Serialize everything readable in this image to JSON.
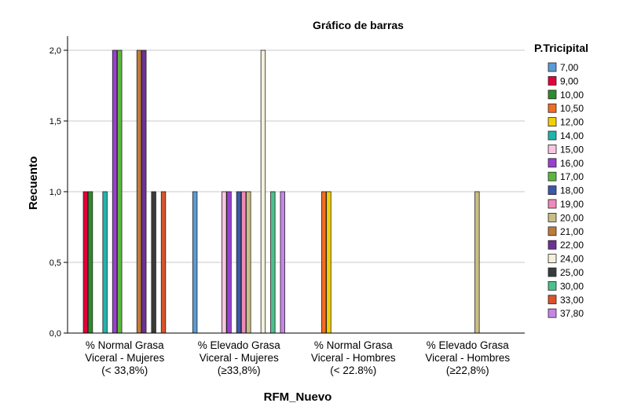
{
  "chart_data": {
    "type": "bar",
    "title": "Gráfico de barras",
    "xlabel": "RFM_Nuevo",
    "ylabel": "Recuento",
    "ylim": [
      0,
      2
    ],
    "yticks": [
      "0,0",
      "0,5",
      "1,0",
      "1,5",
      "2,0"
    ],
    "grid": true,
    "legend_position": "right",
    "legend_title": "P.Tricipital",
    "categories": [
      [
        "% Normal Grasa",
        "Viceral - Mujeres",
        "(< 33,8%)"
      ],
      [
        "% Elevado Grasa",
        "Viceral - Mujeres",
        "(≥33,8%)"
      ],
      [
        "% Normal Grasa",
        "Viceral - Hombres",
        "(< 22.8%)"
      ],
      [
        "% Elevado Grasa",
        "Viceral - Hombres",
        "(≥22,8%)"
      ]
    ],
    "series": [
      {
        "name": "7,00",
        "color": "#5b9bd5",
        "values": [
          0,
          1,
          0,
          0
        ]
      },
      {
        "name": "9,00",
        "color": "#e4003a",
        "values": [
          1,
          0,
          0,
          0
        ]
      },
      {
        "name": "10,00",
        "color": "#2e8b2e",
        "values": [
          1,
          0,
          0,
          0
        ]
      },
      {
        "name": "10,50",
        "color": "#f26d21",
        "values": [
          0,
          0,
          1,
          0
        ]
      },
      {
        "name": "12,00",
        "color": "#f5d000",
        "values": [
          0,
          0,
          1,
          0
        ]
      },
      {
        "name": "14,00",
        "color": "#1fb5ac",
        "values": [
          1,
          0,
          0,
          0
        ]
      },
      {
        "name": "15,00",
        "color": "#f9c6e0",
        "values": [
          0,
          1,
          0,
          0
        ]
      },
      {
        "name": "16,00",
        "color": "#9b3fd4",
        "values": [
          2,
          1,
          0,
          0
        ]
      },
      {
        "name": "17,00",
        "color": "#5cb83c",
        "values": [
          2,
          0,
          0,
          0
        ]
      },
      {
        "name": "18,00",
        "color": "#3b59a8",
        "values": [
          0,
          1,
          0,
          0
        ]
      },
      {
        "name": "19,00",
        "color": "#f18ab8",
        "values": [
          0,
          1,
          0,
          0
        ]
      },
      {
        "name": "20,00",
        "color": "#c9bd84",
        "values": [
          0,
          1,
          0,
          1
        ]
      },
      {
        "name": "21,00",
        "color": "#c07a3a",
        "values": [
          2,
          0,
          0,
          0
        ]
      },
      {
        "name": "22,00",
        "color": "#6d3193",
        "values": [
          2,
          0,
          0,
          0
        ]
      },
      {
        "name": "24,00",
        "color": "#f3f0dc",
        "values": [
          0,
          2,
          0,
          0
        ]
      },
      {
        "name": "25,00",
        "color": "#3a3a3a",
        "values": [
          1,
          0,
          0,
          0
        ]
      },
      {
        "name": "30,00",
        "color": "#4bc08c",
        "values": [
          0,
          1,
          0,
          0
        ]
      },
      {
        "name": "33,00",
        "color": "#d9532c",
        "values": [
          1,
          0,
          0,
          0
        ]
      },
      {
        "name": "37,80",
        "color": "#c785e8",
        "values": [
          0,
          1,
          0,
          0
        ]
      }
    ]
  }
}
